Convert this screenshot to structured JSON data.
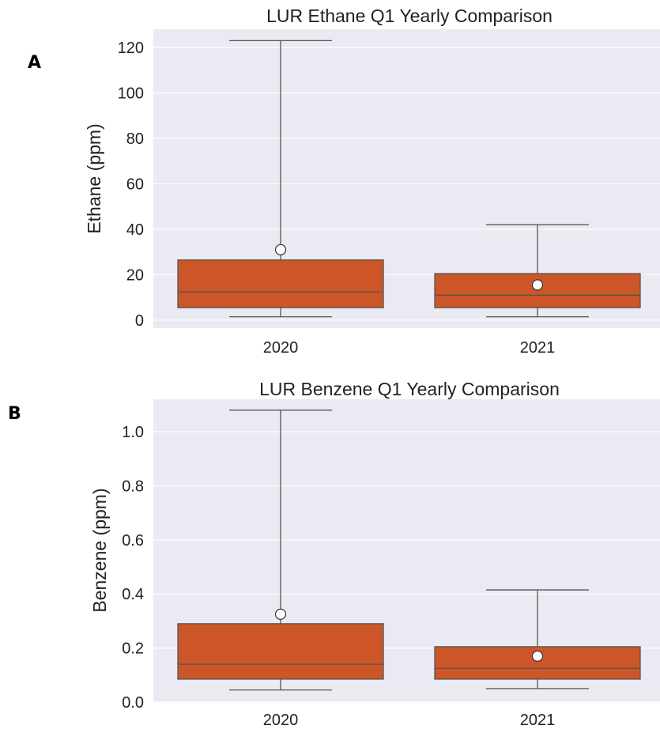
{
  "panels": [
    {
      "letter": "A",
      "chart_data": {
        "type": "box",
        "title": "LUR Ethane Q1 Yearly Comparison",
        "xlabel": "",
        "ylabel": "Ethane (ppm)",
        "ylim": [
          -3.5,
          128
        ],
        "yticks": [
          0,
          20,
          40,
          60,
          80,
          100,
          120
        ],
        "categories": [
          "2020",
          "2021"
        ],
        "boxes": [
          {
            "category": "2020",
            "whisker_low": 1.5,
            "q1": 5.5,
            "median": 12.5,
            "q3": 26.5,
            "whisker_high": 123,
            "mean": 31
          },
          {
            "category": "2021",
            "whisker_low": 1.5,
            "q1": 5.5,
            "median": 11,
            "q3": 20.5,
            "whisker_high": 42,
            "mean": 15.5
          }
        ],
        "grid": true,
        "colors": {
          "box": "#cd5628",
          "edge": "#555555",
          "mean_marker": "#ffffff",
          "background": "#eaeaf2"
        }
      }
    },
    {
      "letter": "B",
      "chart_data": {
        "type": "box",
        "title": "LUR Benzene Q1 Yearly Comparison",
        "xlabel": "",
        "ylabel": "Benzene (ppm)",
        "ylim": [
          0,
          1.12
        ],
        "yticks": [
          0.0,
          0.2,
          0.4,
          0.6,
          0.8,
          1.0
        ],
        "categories": [
          "2020",
          "2021"
        ],
        "boxes": [
          {
            "category": "2020",
            "whisker_low": 0.045,
            "q1": 0.085,
            "median": 0.14,
            "q3": 0.29,
            "whisker_high": 1.08,
            "mean": 0.325
          },
          {
            "category": "2021",
            "whisker_low": 0.05,
            "q1": 0.085,
            "median": 0.125,
            "q3": 0.205,
            "whisker_high": 0.415,
            "mean": 0.17
          }
        ],
        "grid": true,
        "colors": {
          "box": "#cd5628",
          "edge": "#555555",
          "mean_marker": "#ffffff",
          "background": "#eaeaf2"
        }
      }
    }
  ]
}
